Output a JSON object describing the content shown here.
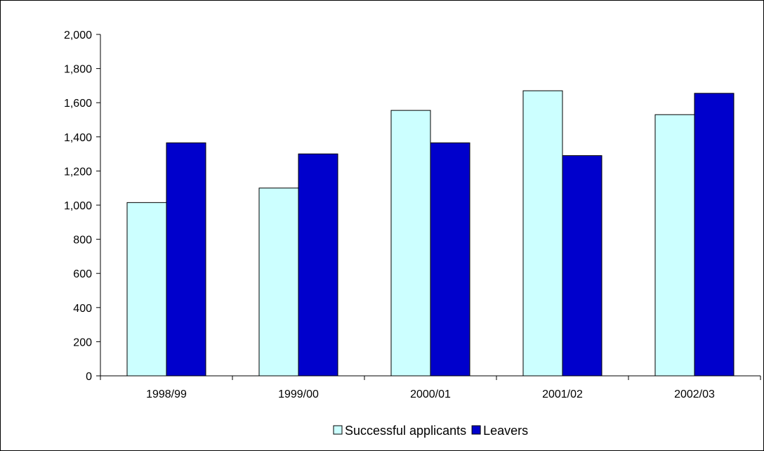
{
  "chart_data": {
    "type": "bar",
    "categories": [
      "1998/99",
      "1999/00",
      "2000/01",
      "2001/02",
      "2002/03"
    ],
    "series": [
      {
        "name": "Successful applicants",
        "values": [
          1015,
          1100,
          1555,
          1670,
          1530
        ],
        "color": "#CCFFFF"
      },
      {
        "name": "Leavers",
        "values": [
          1365,
          1300,
          1365,
          1290,
          1655
        ],
        "color": "#0000CC"
      }
    ],
    "title": "",
    "xlabel": "",
    "ylabel": "",
    "ylim": [
      0,
      2000
    ],
    "yticks": [
      0,
      200,
      400,
      600,
      800,
      1000,
      1200,
      1400,
      1600,
      1800,
      2000
    ],
    "ytick_labels": [
      "0",
      "200",
      "400",
      "600",
      "800",
      "1,000",
      "1,200",
      "1,400",
      "1,600",
      "1,800",
      "2,000"
    ],
    "grid": false,
    "legend_position": "bottom-center"
  }
}
